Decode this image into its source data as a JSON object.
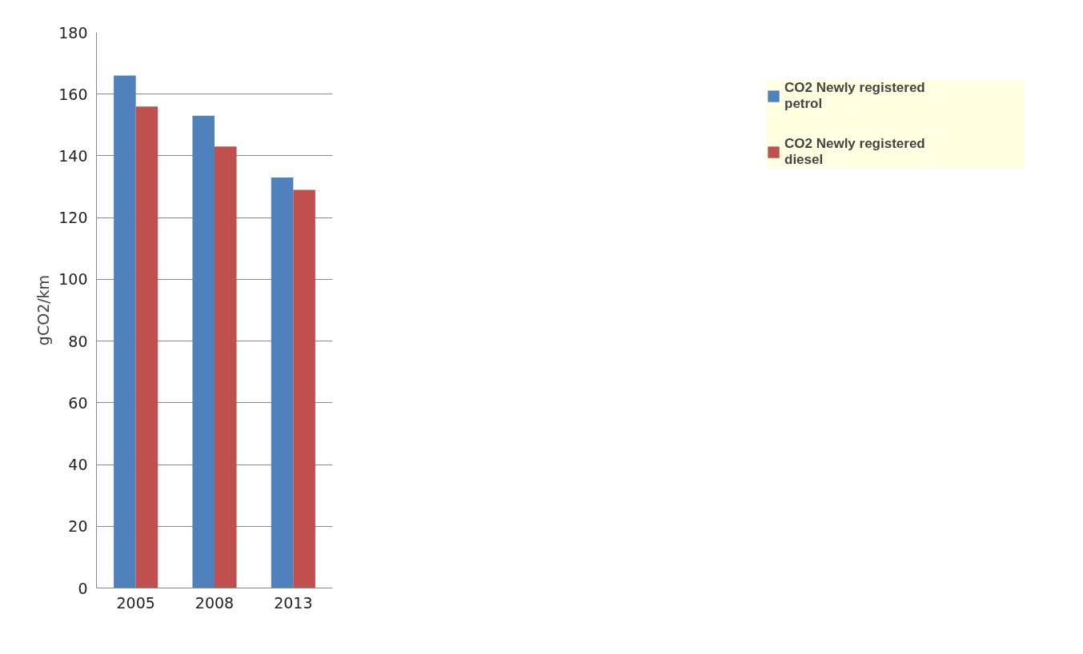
{
  "chart_data": {
    "type": "bar",
    "ylabel": "gCO2/km",
    "categories": [
      "2005",
      "2008",
      "2013"
    ],
    "series": [
      {
        "name": "CO2 Newly registered petrol",
        "color": "#4f81bd",
        "values": [
          166,
          153,
          133
        ]
      },
      {
        "name": "CO2 Newly registered diesel",
        "color": "#c0504d",
        "values": [
          156,
          143,
          129
        ]
      }
    ],
    "ylim": [
      0,
      180
    ],
    "yticks": [
      0,
      20,
      40,
      60,
      80,
      100,
      120,
      140,
      160,
      180
    ],
    "grid": "y",
    "legend": "right"
  }
}
